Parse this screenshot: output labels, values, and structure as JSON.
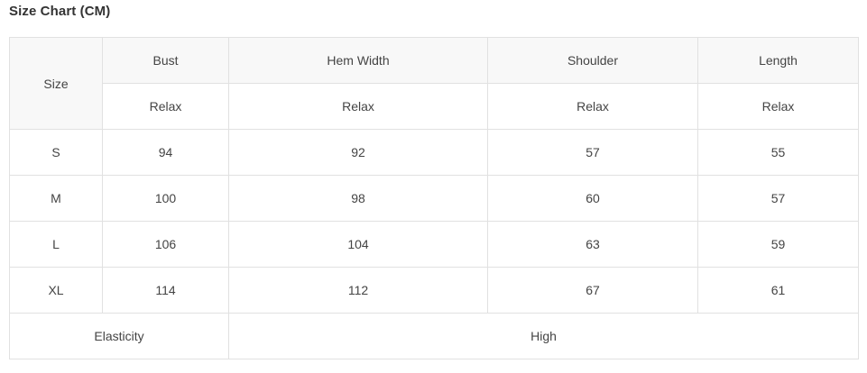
{
  "page": {
    "title": "Size Chart (CM)"
  },
  "size_chart": {
    "header": {
      "size_label": "Size",
      "columns": [
        {
          "label": "Bust",
          "sub": "Relax"
        },
        {
          "label": "Hem Width",
          "sub": "Relax"
        },
        {
          "label": "Shoulder",
          "sub": "Relax"
        },
        {
          "label": "Length",
          "sub": "Relax"
        }
      ]
    },
    "rows": [
      {
        "size": "S",
        "bust": "94",
        "hem_width": "92",
        "shoulder": "57",
        "length": "55"
      },
      {
        "size": "M",
        "bust": "100",
        "hem_width": "98",
        "shoulder": "60",
        "length": "57"
      },
      {
        "size": "L",
        "bust": "106",
        "hem_width": "104",
        "shoulder": "63",
        "length": "59"
      },
      {
        "size": "XL",
        "bust": "114",
        "hem_width": "112",
        "shoulder": "67",
        "length": "61"
      }
    ],
    "footer": {
      "label": "Elasticity",
      "value": "High"
    },
    "colors": {
      "border": "#e1e1e1",
      "header_background": "#f8f8f8",
      "title_text": "#333333",
      "cell_text": "#444444"
    }
  }
}
